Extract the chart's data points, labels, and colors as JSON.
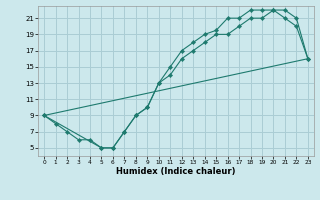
{
  "title": "",
  "xlabel": "Humidex (Indice chaleur)",
  "bg_color": "#cce8ec",
  "grid_color": "#aacdd4",
  "line_color": "#1e7a6e",
  "xlim": [
    -0.5,
    23.5
  ],
  "ylim": [
    4.0,
    22.5
  ],
  "xticks": [
    0,
    1,
    2,
    3,
    4,
    5,
    6,
    7,
    8,
    9,
    10,
    11,
    12,
    13,
    14,
    15,
    16,
    17,
    18,
    19,
    20,
    21,
    22,
    23
  ],
  "yticks": [
    5,
    7,
    9,
    11,
    13,
    15,
    17,
    19,
    21
  ],
  "line1_x": [
    0,
    1,
    2,
    3,
    4,
    5,
    6,
    7,
    8,
    9,
    10,
    11,
    12,
    13,
    14,
    15,
    16,
    17,
    18,
    19,
    20,
    21,
    22,
    23
  ],
  "line1_y": [
    9,
    8,
    7,
    6,
    6,
    5,
    5,
    7,
    9,
    10,
    13,
    14,
    16,
    17,
    18,
    19,
    19,
    20,
    21,
    21,
    22,
    22,
    21,
    16
  ],
  "line2_x": [
    0,
    5,
    6,
    7,
    8,
    9,
    10,
    11,
    12,
    13,
    14,
    15,
    16,
    17,
    18,
    19,
    20,
    21,
    22,
    23
  ],
  "line2_y": [
    9,
    5,
    5,
    7,
    9,
    10,
    13,
    15,
    17,
    18,
    19,
    19.5,
    21,
    21,
    22,
    22,
    22,
    21,
    20,
    16
  ],
  "line3_x": [
    0,
    23
  ],
  "line3_y": [
    9,
    16
  ]
}
